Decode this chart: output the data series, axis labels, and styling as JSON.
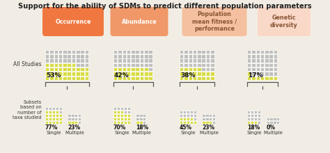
{
  "title": "Support for the ability of SDMs to predict different population parameters",
  "categories": [
    "Occurrence",
    "Abundance",
    "Population\nmean fitness /\nperformance",
    "Genetic\ndiversity"
  ],
  "category_colors": [
    "#F07840",
    "#F09868",
    "#F5C0A0",
    "#FAD8C8"
  ],
  "category_text_colors": [
    "white",
    "white",
    "#885533",
    "#885533"
  ],
  "all_studies_pct": [
    53,
    42,
    38,
    17
  ],
  "single_pct": [
    77,
    70,
    45,
    18
  ],
  "multiple_pct": [
    23,
    18,
    23,
    0
  ],
  "yellow": "#D8DC44",
  "gray": "#C0C0BE",
  "bg_color": "#F2EDE4",
  "main_ncols": [
    10,
    9,
    8,
    7
  ],
  "main_nrows": [
    7,
    7,
    7,
    7
  ],
  "sub_ncols_single": [
    5,
    5,
    5,
    4
  ],
  "sub_nrows_single": [
    5,
    5,
    4,
    4
  ],
  "sub_ncols_multi": [
    4,
    3,
    4,
    4
  ],
  "sub_nrows_multi": [
    3,
    3,
    3,
    2
  ]
}
